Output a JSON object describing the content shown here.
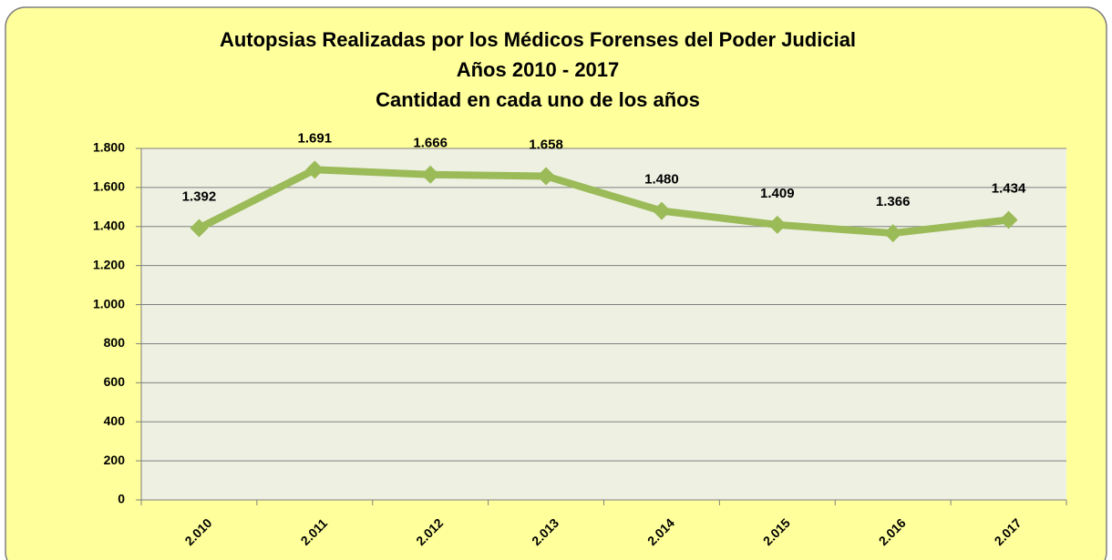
{
  "chart_data": {
    "type": "line",
    "title": [
      "Autopsias Realizadas por los Médicos Forenses del Poder Judicial",
      "Años 2010 - 2017",
      "Cantidad en cada uno de los años"
    ],
    "categories": [
      "2.010",
      "2.011",
      "2.012",
      "2.013",
      "2.014",
      "2.015",
      "2.016",
      "2.017"
    ],
    "values": [
      1392,
      1691,
      1666,
      1658,
      1480,
      1409,
      1366,
      1434
    ],
    "value_labels": [
      "1.392",
      "1.691",
      "1.666",
      "1.658",
      "1.480",
      "1.409",
      "1.366",
      "1.434"
    ],
    "color": "#9bbb59",
    "ylim": [
      0,
      1800
    ],
    "yticks": [
      0,
      200,
      400,
      600,
      800,
      {
        "value": 1000,
        "label": "1.000"
      },
      {
        "value": 1200,
        "label": "1.200"
      },
      {
        "value": 1400,
        "label": "1.400"
      },
      {
        "value": 1600,
        "label": "1.600"
      },
      {
        "value": 1800,
        "label": "1.800"
      }
    ],
    "grid": true
  }
}
